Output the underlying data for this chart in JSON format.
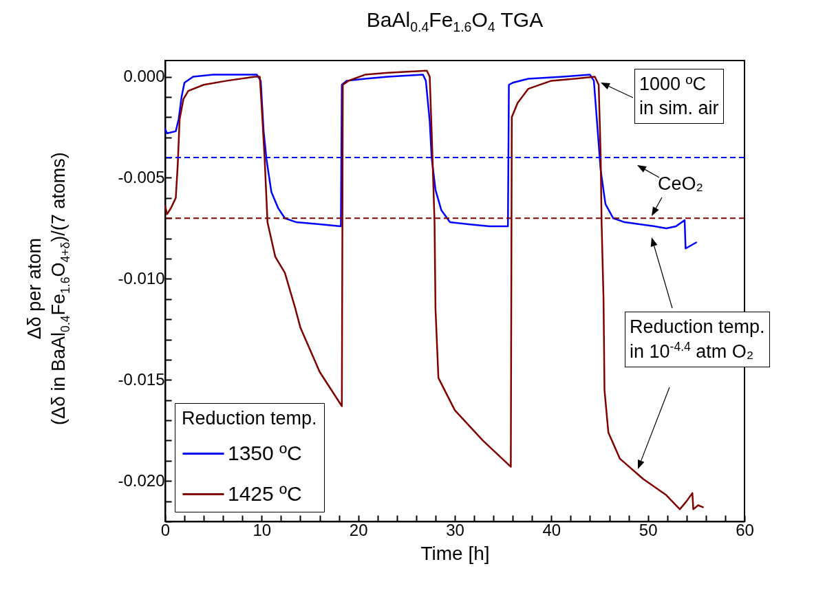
{
  "chart_data": {
    "type": "line",
    "title": "BaAl$_{0.4}$Fe$_{1.6}$O$_{4}$ TGA",
    "xlabel": "Time [h]",
    "ylabel": "Δδ per atom\n(Δδ in BaAl$_{0.4}$Fe$_{1.6}$O$_{4+δ}$)/(7 atoms)",
    "legend_title": "Reduction temp.",
    "annotations": [
      "1000 ºC\nin sim. air",
      "CeO₂",
      "Reduction temp.\nin 10$^{-4.4}$ atm O₂"
    ],
    "xlim": [
      0,
      60
    ],
    "ylim": [
      -0.022,
      0.0008
    ],
    "xticks": [
      0,
      {
        "value": 2,
        "label": null
      },
      {
        "value": 4,
        "label": null
      },
      {
        "value": 6,
        "label": null
      },
      {
        "value": 8,
        "label": null
      },
      10,
      {
        "value": 12,
        "label": null
      },
      {
        "value": 14,
        "label": null
      },
      {
        "value": 16,
        "label": null
      },
      {
        "value": 18,
        "label": null
      },
      20,
      {
        "value": 22,
        "label": null
      },
      {
        "value": 24,
        "label": null
      },
      {
        "value": 26,
        "label": null
      },
      {
        "value": 28,
        "label": null
      },
      30,
      {
        "value": 32,
        "label": null
      },
      {
        "value": 34,
        "label": null
      },
      {
        "value": 36,
        "label": null
      },
      {
        "value": 38,
        "label": null
      },
      40,
      {
        "value": 42,
        "label": null
      },
      {
        "value": 44,
        "label": null
      },
      {
        "value": 46,
        "label": null
      },
      {
        "value": 48,
        "label": null
      },
      50,
      {
        "value": 52,
        "label": null
      },
      {
        "value": 54,
        "label": null
      },
      {
        "value": 56,
        "label": null
      },
      {
        "value": 58,
        "label": null
      },
      60
    ],
    "yticks": [
      {
        "value": -0.022,
        "label": null
      },
      {
        "value": -0.021,
        "label": null
      },
      {
        "value": -0.02,
        "label": "-0.020"
      },
      {
        "value": -0.019,
        "label": null
      },
      {
        "value": -0.018,
        "label": null
      },
      {
        "value": -0.017,
        "label": null
      },
      {
        "value": -0.016,
        "label": null
      },
      {
        "value": -0.015,
        "label": "-0.015"
      },
      {
        "value": -0.014,
        "label": null
      },
      {
        "value": -0.013,
        "label": null
      },
      {
        "value": -0.012,
        "label": null
      },
      {
        "value": -0.011,
        "label": null
      },
      {
        "value": -0.01,
        "label": "-0.010"
      },
      {
        "value": -0.009,
        "label": null
      },
      {
        "value": -0.008,
        "label": null
      },
      {
        "value": -0.007,
        "label": null
      },
      {
        "value": -0.006,
        "label": null
      },
      {
        "value": -0.005,
        "label": "-0.005"
      },
      {
        "value": -0.004,
        "label": null
      },
      {
        "value": -0.003,
        "label": null
      },
      {
        "value": -0.002,
        "label": null
      },
      {
        "value": -0.001,
        "label": null
      },
      {
        "value": 0,
        "label": "0.000"
      }
    ],
    "grid": false,
    "legend": "bottom left",
    "marker": "none",
    "line_style": "solid",
    "ref_lines": [
      {
        "axis": "y",
        "value": -0.004,
        "color": "#0000ff",
        "line_style": "dashed"
      },
      {
        "axis": "y",
        "value": -0.007,
        "color": "#800000",
        "line_style": "dashed"
      }
    ],
    "series": [
      {
        "name": "1350 ºC",
        "color": "#0000ff",
        "x": [
          0,
          0.2,
          1.1,
          1.4,
          1.7,
          2.0,
          2.9,
          5,
          9.5,
          9.9,
          10.2,
          10.5,
          11.0,
          11.7,
          12.4,
          13.6,
          16,
          18.2,
          18.3,
          18.8,
          20.7,
          23.1,
          26.7,
          27.0,
          27.4,
          27.6,
          28,
          28.6,
          29.5,
          31.4,
          33.6,
          35.5,
          35.6,
          36.0,
          37.6,
          41.2,
          44.0,
          44.4,
          44.8,
          45.1,
          45.6,
          46.4,
          47.6,
          50.7,
          51.9,
          52.9,
          53.8,
          53.9,
          55.0
        ],
        "values": [
          -0.0026,
          -0.0028,
          -0.0027,
          -0.0021,
          -0.001,
          -0.0003,
          0,
          0.0001,
          0.0001,
          -0.0002,
          -0.0027,
          -0.0041,
          -0.0057,
          -0.0065,
          -0.007,
          -0.0072,
          -0.0073,
          -0.0074,
          -0.0004,
          -0.0002,
          -0.0001,
          0,
          0.0001,
          -0.0002,
          -0.0022,
          -0.004,
          -0.0056,
          -0.0066,
          -0.0072,
          -0.0073,
          -0.0074,
          -0.0074,
          -0.0004,
          -0.0003,
          -0.0001,
          0,
          0.0001,
          -0.0002,
          -0.0027,
          -0.0046,
          -0.0063,
          -0.007,
          -0.0072,
          -0.0074,
          -0.0075,
          -0.0074,
          -0.0071,
          -0.0085,
          -0.0082
        ]
      },
      {
        "name": "1425 ºC",
        "color": "#800000",
        "x": [
          0,
          0.2,
          0.6,
          1.1,
          1.3,
          1.5,
          1.9,
          2.4,
          4.0,
          6.4,
          9.3,
          9.8,
          10.0,
          10.3,
          10.6,
          11.4,
          12.4,
          13.5,
          14.0,
          16.0,
          18.3,
          18.4,
          19.0,
          20.7,
          23.1,
          27.1,
          27.4,
          27.6,
          27.9,
          28.0,
          28.3,
          30.0,
          32.9,
          35.8,
          35.9,
          36.5,
          37.6,
          40.0,
          42.4,
          44.5,
          44.9,
          45.1,
          45.2,
          45.4,
          45.5,
          45.9,
          47.1,
          49.5,
          51.9,
          53.3,
          54.0,
          54.6,
          54.7,
          55.2,
          55.7
        ],
        "values": [
          -0.0064,
          -0.0068,
          -0.0065,
          -0.006,
          -0.0044,
          -0.0021,
          -0.0011,
          -0.0007,
          -0.0004,
          -0.0002,
          0,
          0,
          -0.0015,
          -0.004,
          -0.0072,
          -0.0089,
          -0.0097,
          -0.0115,
          -0.0124,
          -0.0146,
          -0.0163,
          -0.0004,
          -0.0002,
          0.0001,
          0.0002,
          0.0003,
          0,
          -0.0027,
          -0.0072,
          -0.0115,
          -0.0149,
          -0.0165,
          -0.018,
          -0.0193,
          -0.002,
          -0.0013,
          -0.0006,
          -0.0002,
          -0.0001,
          0,
          -0.0004,
          -0.0038,
          -0.0072,
          -0.011,
          -0.0155,
          -0.0176,
          -0.0189,
          -0.0199,
          -0.0207,
          -0.0214,
          -0.021,
          -0.0206,
          -0.0214,
          -0.0212,
          -0.0213
        ]
      }
    ]
  }
}
